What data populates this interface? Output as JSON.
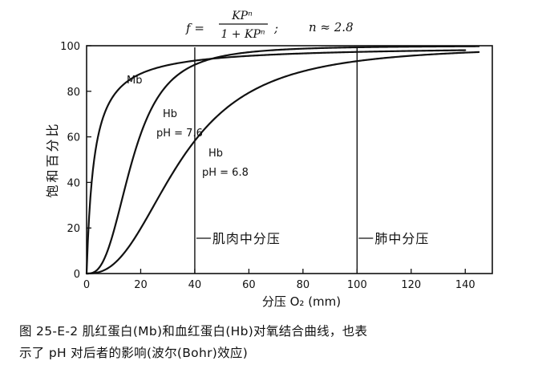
{
  "formula": {
    "lhs": "f =",
    "numerator": "KPⁿ",
    "denominator": "1 + KPⁿ",
    "separator": ";",
    "n_expr": "n ≈ 2.8"
  },
  "chart_data": {
    "type": "line",
    "xlabel": "分压 O₂ (mm)",
    "ylabel": "饱和百分比",
    "xlim": [
      0,
      150
    ],
    "ylim": [
      0,
      100
    ],
    "x_ticks": [
      0,
      20,
      40,
      60,
      80,
      100,
      120,
      140
    ],
    "y_ticks": [
      0,
      20,
      40,
      60,
      80,
      100
    ],
    "grid": false,
    "series": [
      {
        "name": "Mb",
        "label_lines": [
          "Mb"
        ],
        "model": "hyperbolic",
        "p50": 2.8,
        "n": 1.0,
        "x": [
          0,
          5,
          10,
          20,
          40,
          60,
          100,
          140
        ],
        "y": [
          0,
          64,
          78,
          88,
          93,
          96,
          97,
          98
        ]
      },
      {
        "name": "Hb pH=7.6",
        "label_lines": [
          "Hb",
          "pH = 7.6"
        ],
        "model": "hill",
        "p50": 17,
        "n": 2.8,
        "x": [
          0,
          10,
          15,
          20,
          30,
          40,
          60,
          80,
          100,
          145
        ],
        "y": [
          0,
          18,
          42,
          61,
          81,
          88,
          94,
          96,
          97,
          98
        ]
      },
      {
        "name": "Hb pH=6.8",
        "label_lines": [
          "Hb",
          "pH = 6.8"
        ],
        "model": "hill",
        "p50": 35,
        "n": 2.5,
        "x": [
          0,
          10,
          20,
          30,
          40,
          60,
          80,
          100,
          120,
          145
        ],
        "y": [
          0,
          4,
          15,
          37,
          58,
          80,
          88,
          92,
          94,
          97
        ]
      }
    ],
    "annotations": [
      {
        "x": 40,
        "label": "肌肉中分压"
      },
      {
        "x": 100,
        "label": "肺中分压"
      }
    ]
  },
  "caption": {
    "line1": "图 25-E-2   肌红蛋白(Mb)和血红蛋白(Hb)对氧结合曲线，也表",
    "line2": "示了 pH 对后者的影响(波尔(Bohr)效应)"
  }
}
